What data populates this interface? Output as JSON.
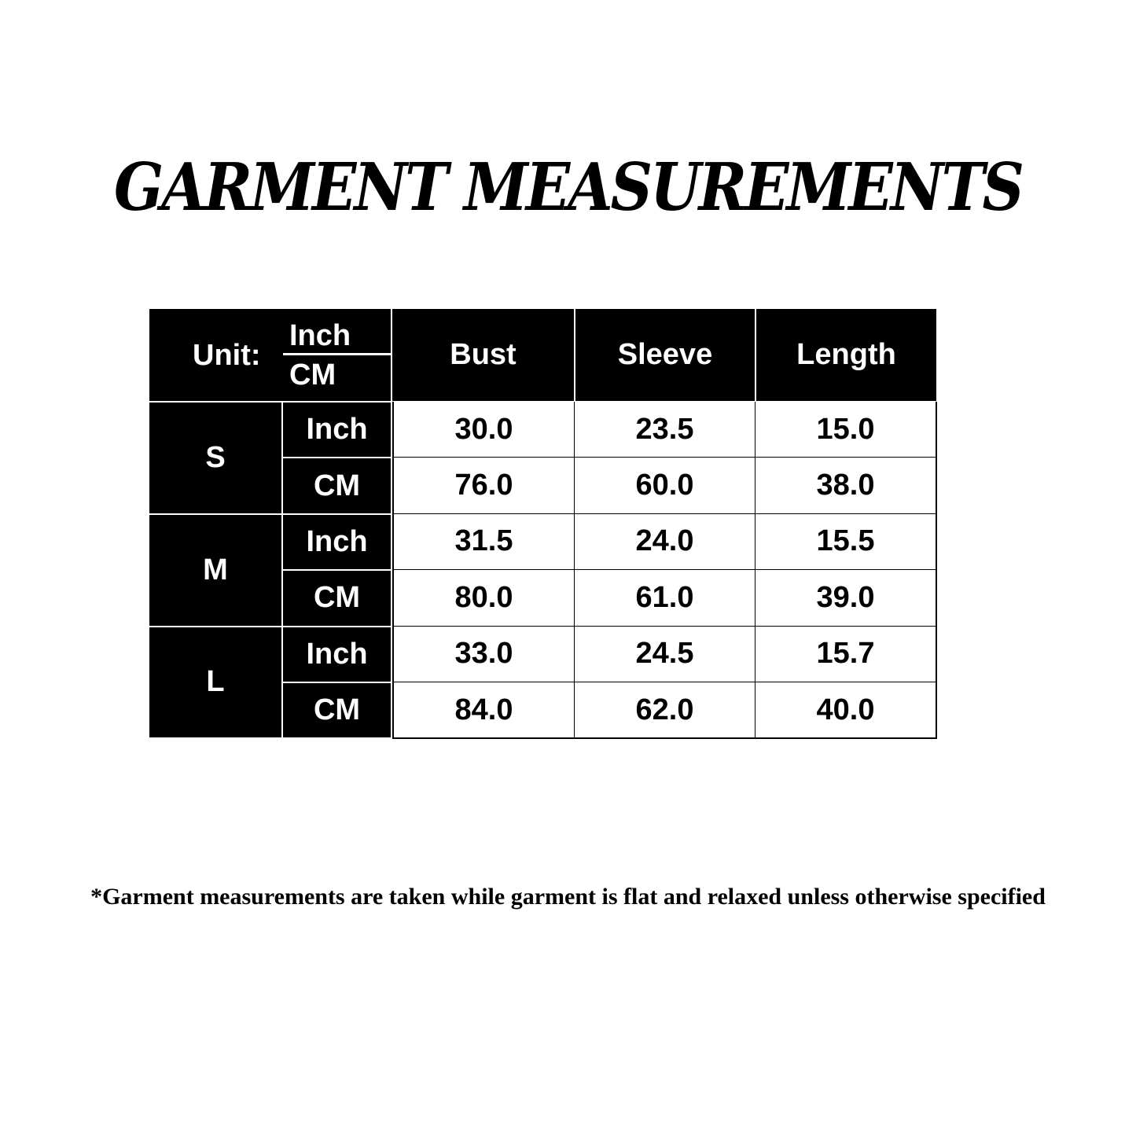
{
  "title": "GARMENT MEASUREMENTS",
  "table": {
    "unit_label": "Unit:",
    "unit_top": "Inch",
    "unit_bottom": "CM",
    "columns": [
      "Bust",
      "Sleeve",
      "Length"
    ],
    "sizes": [
      {
        "size": "S",
        "rows": [
          {
            "unit": "Inch",
            "values": [
              "30.0",
              "23.5",
              "15.0"
            ]
          },
          {
            "unit": "CM",
            "values": [
              "76.0",
              "60.0",
              "38.0"
            ]
          }
        ]
      },
      {
        "size": "M",
        "rows": [
          {
            "unit": "Inch",
            "values": [
              "31.5",
              "24.0",
              "15.5"
            ]
          },
          {
            "unit": "CM",
            "values": [
              "80.0",
              "61.0",
              "39.0"
            ]
          }
        ]
      },
      {
        "size": "L",
        "rows": [
          {
            "unit": "Inch",
            "values": [
              "33.0",
              "24.5",
              "15.7"
            ]
          },
          {
            "unit": "CM",
            "values": [
              "84.0",
              "62.0",
              "40.0"
            ]
          }
        ]
      }
    ]
  },
  "footnote": "*Garment measurements are taken while garment is flat and relaxed unless otherwise specified"
}
